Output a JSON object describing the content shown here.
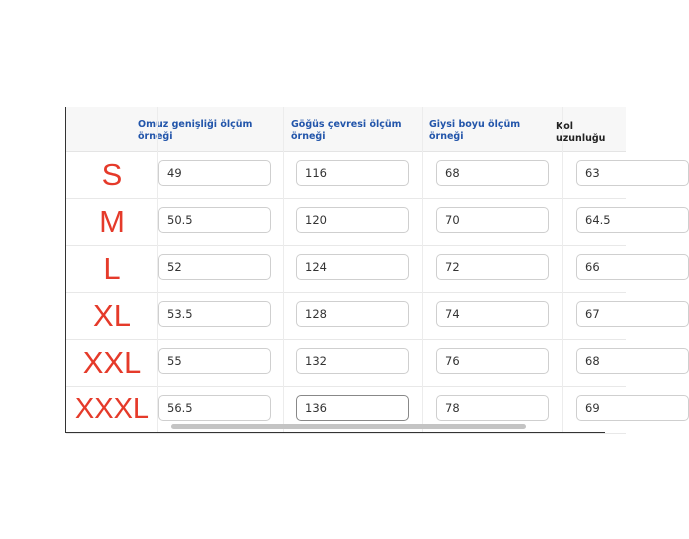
{
  "headers": [
    "Omuz genişliği ölçüm örneği",
    "Göğüs çevresi ölçüm örneği",
    "Giysi boyu ölçüm örneği",
    "Kol uzunluğu"
  ],
  "rows": [
    {
      "size": "S",
      "values": [
        "49",
        "116",
        "68",
        "63"
      ]
    },
    {
      "size": "M",
      "values": [
        "50.5",
        "120",
        "70",
        "64.5"
      ]
    },
    {
      "size": "L",
      "values": [
        "52",
        "124",
        "72",
        "66"
      ]
    },
    {
      "size": "XL",
      "values": [
        "53.5",
        "128",
        "74",
        "67"
      ]
    },
    {
      "size": "XXL",
      "values": [
        "55",
        "132",
        "76",
        "68"
      ]
    },
    {
      "size": "XXXL",
      "values": [
        "56.5",
        "136",
        "78",
        "69"
      ]
    }
  ],
  "colors": {
    "size_label": "#e53a2a",
    "header_text": "#2255aa"
  }
}
